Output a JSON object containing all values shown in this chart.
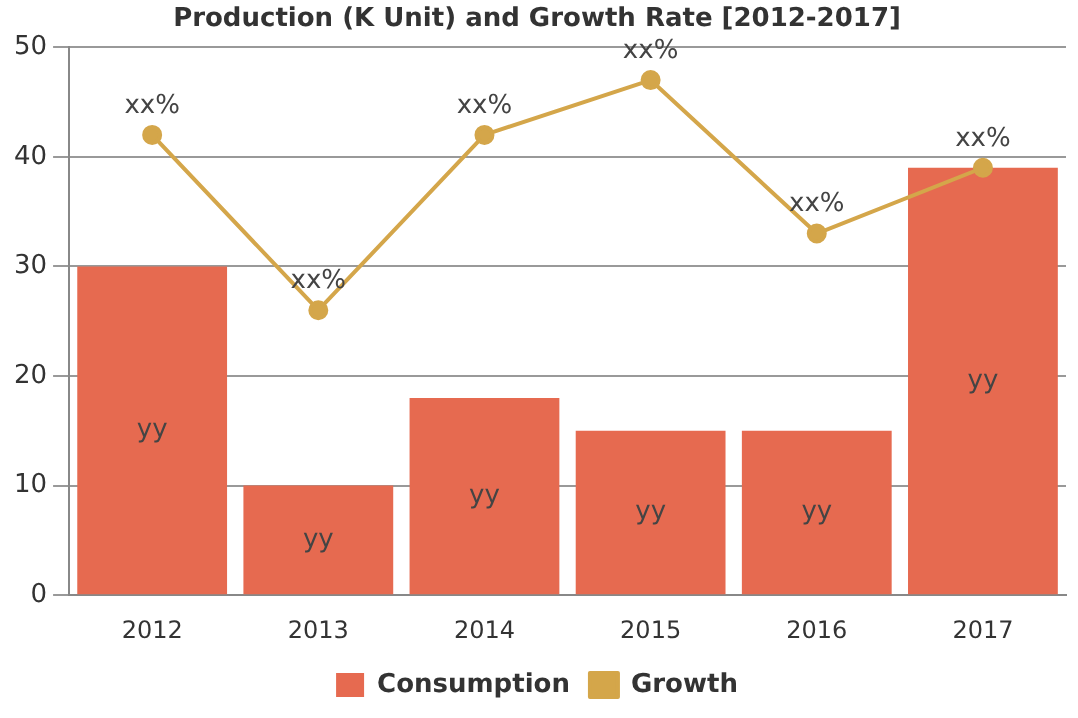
{
  "chart_data": {
    "type": "bar",
    "title": "Production (K Unit) and Growth Rate [2012-2017]",
    "categories": [
      "2012",
      "2013",
      "2014",
      "2015",
      "2016",
      "2017"
    ],
    "series": [
      {
        "name": "Consumption",
        "color": "#e66a50",
        "values": [
          30,
          10,
          18,
          15,
          15,
          39
        ],
        "value_labels": [
          "yy",
          "yy",
          "yy",
          "yy",
          "yy",
          "yy"
        ]
      },
      {
        "name": "Growth",
        "type": "line",
        "color": "#d4a64a",
        "values": [
          42,
          26,
          42,
          47,
          33,
          39
        ],
        "value_labels": [
          "xx%",
          "xx%",
          "xx%",
          "xx%",
          "xx%",
          "xx%"
        ]
      }
    ],
    "ylim": [
      0,
      50
    ],
    "yticks": [
      0,
      10,
      20,
      30,
      40,
      50
    ],
    "grid": "y",
    "legend": "bottom",
    "marker": "circle"
  }
}
